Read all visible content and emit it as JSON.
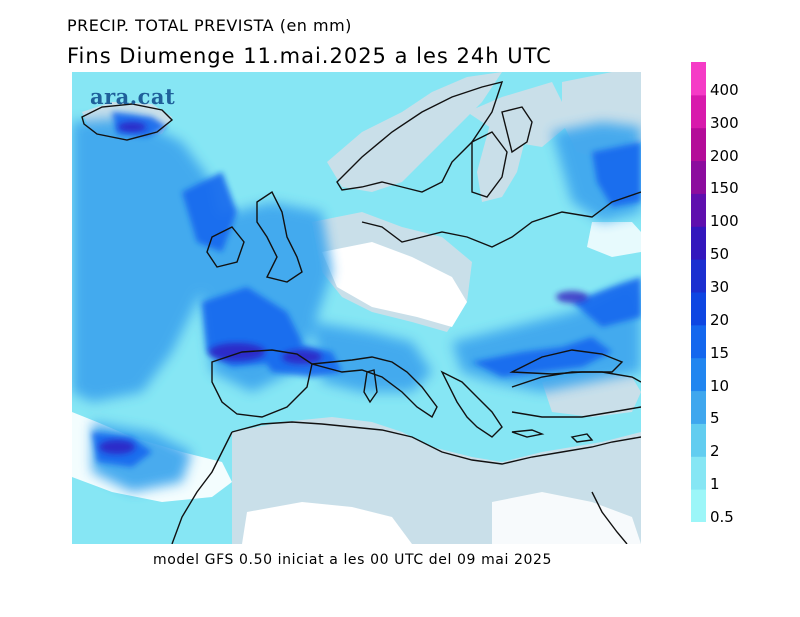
{
  "title_line1": "PRECIP. TOTAL PREVISTA (en mm)",
  "title_line2": "Fins Diumenge 11.mai.2025 a les 24h UTC",
  "logo_text": "ara.cat",
  "footer_text": "model GFS 0.50 iniciat a les 00 UTC del 09 mai 2025",
  "legend": {
    "levels": [
      {
        "label": "0.5",
        "color": "#9cf6f8"
      },
      {
        "label": "1",
        "color": "#86e6f4"
      },
      {
        "label": "2",
        "color": "#62cdf0"
      },
      {
        "label": "5",
        "color": "#3fa7ee"
      },
      {
        "label": "10",
        "color": "#2186f0"
      },
      {
        "label": "15",
        "color": "#1467ee"
      },
      {
        "label": "20",
        "color": "#0e46e2"
      },
      {
        "label": "30",
        "color": "#1b2fd0"
      },
      {
        "label": "50",
        "color": "#3317bd"
      },
      {
        "label": "100",
        "color": "#5f0fae"
      },
      {
        "label": "150",
        "color": "#8c0c9e"
      },
      {
        "label": "200",
        "color": "#b40c99"
      },
      {
        "label": "300",
        "color": "#d81aac"
      },
      {
        "label": "400",
        "color": "#f53bc6"
      }
    ]
  },
  "map_colors": {
    "dry_land": "#c9dfe9",
    "dry_sea": "#ffffff",
    "coastline": "#111111"
  }
}
